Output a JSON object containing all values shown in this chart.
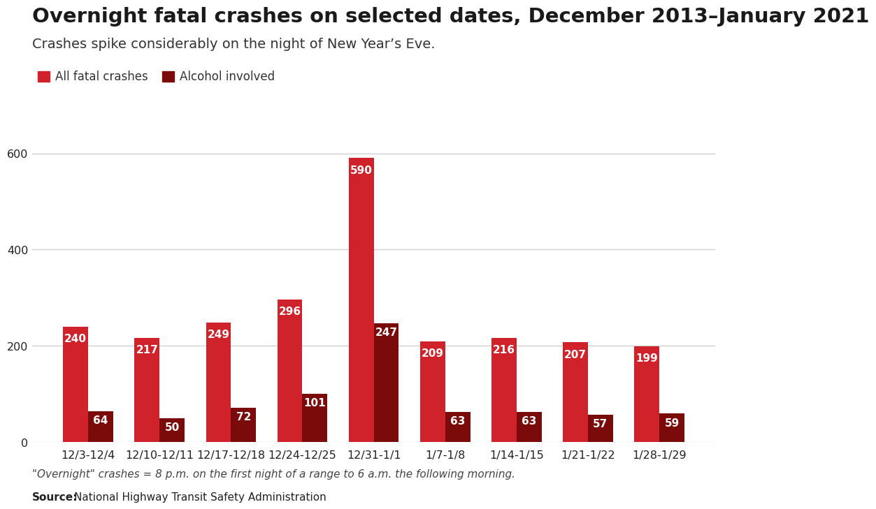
{
  "title": "Overnight fatal crashes on selected dates, December 2013–January 2021",
  "subtitle": "Crashes spike considerably on the night of New Year’s Eve.",
  "categories": [
    "12/3-12/4",
    "12/10-12/11",
    "12/17-12/18",
    "12/24-12/25",
    "12/31-1/1",
    "1/7-1/8",
    "1/14-1/15",
    "1/21-1/22",
    "1/28-1/29"
  ],
  "all_crashes": [
    240,
    217,
    249,
    296,
    590,
    209,
    216,
    207,
    199
  ],
  "alcohol_crashes": [
    64,
    50,
    72,
    101,
    247,
    63,
    63,
    57,
    59
  ],
  "all_color": "#D0222A",
  "alcohol_color": "#7B0B0B",
  "ylim": [
    0,
    620
  ],
  "yticks": [
    0,
    200,
    400,
    600
  ],
  "bar_width": 0.35,
  "note": "\"Overnight\" crashes = 8 p.m. on the first night of a range to 6 a.m. the following morning.",
  "source": "National Highway Transit Safety Administration",
  "background_color": "#FFFFFF",
  "title_fontsize": 21,
  "subtitle_fontsize": 14,
  "label_fontsize": 11,
  "tick_fontsize": 11.5,
  "note_fontsize": 11,
  "legend_label_all": "All fatal crashes",
  "legend_label_alcohol": "Alcohol involved"
}
